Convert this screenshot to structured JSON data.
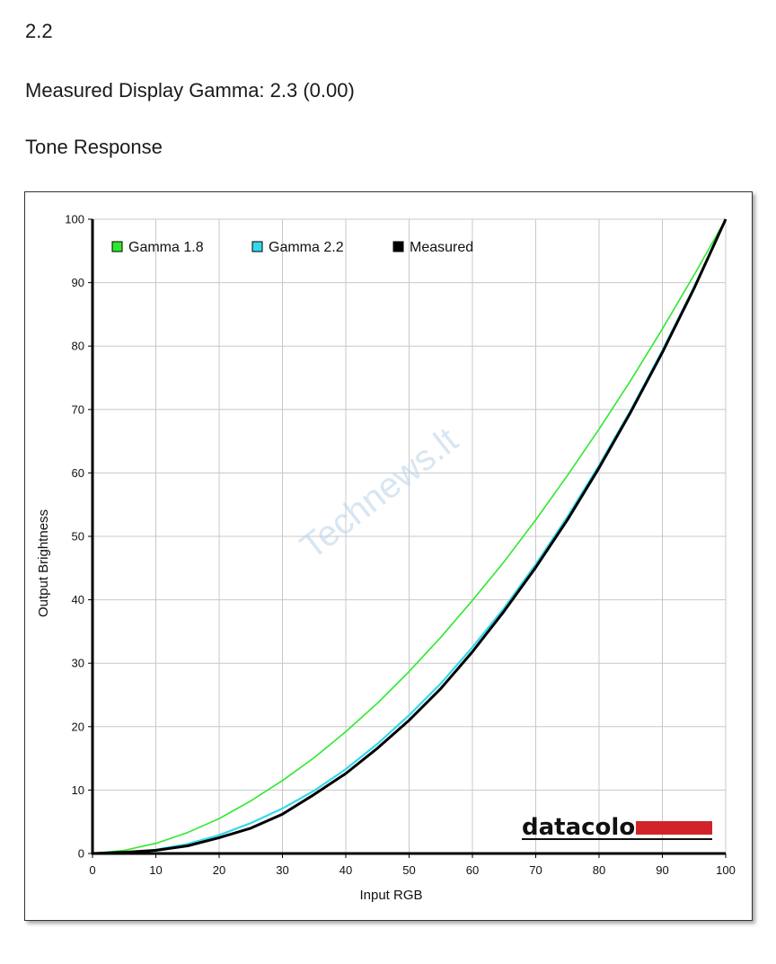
{
  "header": {
    "version": "2.2",
    "gamma_line": "Measured Display Gamma: 2.3 (0.00)",
    "section_title": "Tone Response"
  },
  "watermark": {
    "text": "Technews.lt"
  },
  "brand": {
    "name": "datacolor",
    "bar_color": "#d2232a"
  },
  "chart_data": {
    "type": "line",
    "title": "",
    "xlabel": "Input RGB",
    "ylabel": "Output Brightness",
    "xlim": [
      0,
      100
    ],
    "ylim": [
      0,
      100
    ],
    "xticks": [
      0,
      10,
      20,
      30,
      40,
      50,
      60,
      70,
      80,
      90,
      100
    ],
    "yticks": [
      0,
      10,
      20,
      30,
      40,
      50,
      60,
      70,
      80,
      90,
      100
    ],
    "grid": true,
    "legend_position": "top-left",
    "series": [
      {
        "name": "Gamma 1.8",
        "color": "#2ee82e",
        "x": [
          0,
          5,
          10,
          15,
          20,
          25,
          30,
          35,
          40,
          45,
          50,
          55,
          60,
          65,
          70,
          75,
          80,
          85,
          90,
          95,
          100
        ],
        "y": [
          0,
          0.5,
          1.6,
          3.3,
          5.5,
          8.3,
          11.5,
          15.1,
          19.2,
          23.7,
          28.7,
          34.1,
          39.9,
          46.0,
          52.6,
          59.6,
          66.9,
          74.6,
          82.7,
          91.2,
          100
        ]
      },
      {
        "name": "Gamma 2.2",
        "color": "#34d8ec",
        "x": [
          0,
          5,
          10,
          15,
          20,
          25,
          30,
          35,
          40,
          45,
          50,
          55,
          60,
          65,
          70,
          75,
          80,
          85,
          90,
          95,
          100
        ],
        "y": [
          0,
          0.1,
          0.6,
          1.5,
          2.9,
          4.8,
          7.1,
          9.9,
          13.3,
          17.3,
          21.8,
          26.8,
          32.5,
          38.7,
          45.6,
          53.1,
          61.2,
          69.9,
          79.3,
          89.3,
          100
        ]
      },
      {
        "name": "Measured",
        "color": "#000000",
        "x": [
          0,
          5,
          10,
          15,
          20,
          25,
          30,
          35,
          40,
          45,
          50,
          55,
          60,
          65,
          70,
          75,
          80,
          85,
          90,
          95,
          100
        ],
        "y": [
          0,
          0.2,
          0.5,
          1.2,
          2.5,
          4.0,
          6.2,
          9.3,
          12.6,
          16.6,
          21.0,
          26.0,
          31.8,
          38.2,
          45.1,
          52.6,
          60.8,
          69.6,
          79.0,
          89.1,
          100
        ]
      }
    ]
  }
}
